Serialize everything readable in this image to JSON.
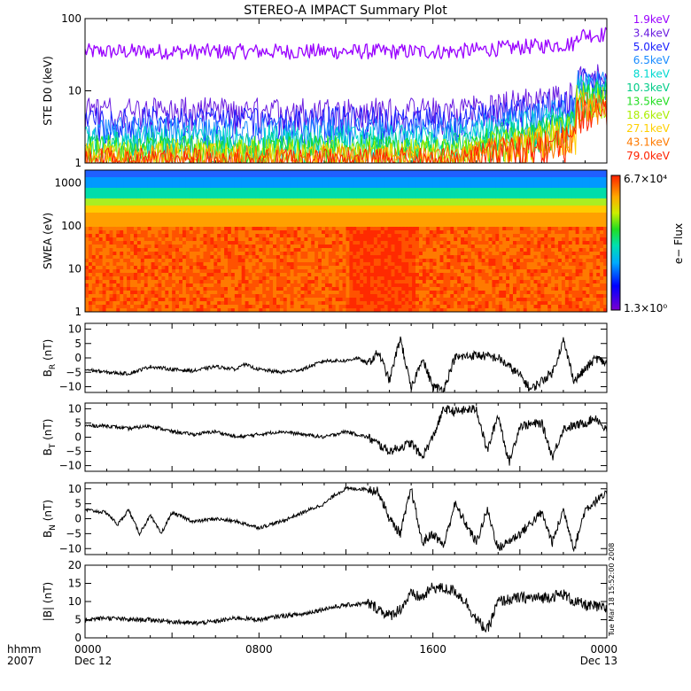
{
  "title": "STEREO-A IMPACT Summary Plot",
  "timestamp": "Tue Mar 18 15:52:00 2008",
  "x_axis": {
    "row1_label": "hhmm",
    "row2_label": "2007",
    "ticks": [
      {
        "t": 0,
        "top": "0000",
        "bottom": "Dec 12"
      },
      {
        "t": 8,
        "top": "0800",
        "bottom": ""
      },
      {
        "t": 16,
        "top": "1600",
        "bottom": ""
      },
      {
        "t": 24,
        "top": "0000",
        "bottom": "Dec 13"
      }
    ],
    "range_hours": [
      0,
      24
    ]
  },
  "colors": {
    "1.9keV": "#9900ff",
    "3.4keV": "#6a1be0",
    "5.0keV": "#1a20ff",
    "6.5keV": "#1a8cff",
    "8.1keV": "#00d8d0",
    "10.3keV": "#00cc88",
    "13.5keV": "#22dd22",
    "18.6keV": "#aaee00",
    "27.1keV": "#ffd000",
    "43.1keV": "#ff7a00",
    "79.0keV": "#ff2200"
  },
  "chart_data": [
    {
      "id": "ste",
      "type": "line",
      "ylabel": "STE D0 (keV)",
      "yscale": "log",
      "ylim": [
        1,
        100
      ],
      "yticks": [
        "1",
        "10",
        "100"
      ],
      "ytick_values": [
        1,
        10,
        100
      ],
      "legend_placement": "right",
      "series": [
        {
          "name": "1.9keV",
          "level_before": 35,
          "level_after": 60,
          "spread": 0.25
        },
        {
          "name": "3.4keV",
          "level_before": 6,
          "level_after": 18,
          "spread": 0.3
        },
        {
          "name": "5.0keV",
          "level_before": 4.5,
          "level_after": 16,
          "spread": 0.3
        },
        {
          "name": "6.5keV",
          "level_before": 3.2,
          "level_after": 14,
          "spread": 0.3
        },
        {
          "name": "8.1keV",
          "level_before": 2.5,
          "level_after": 12,
          "spread": 0.3
        },
        {
          "name": "10.3keV",
          "level_before": 2,
          "level_after": 11,
          "spread": 0.3
        },
        {
          "name": "13.5keV",
          "level_before": 1.8,
          "level_after": 10,
          "spread": 0.3
        },
        {
          "name": "18.6keV",
          "level_before": 1.6,
          "level_after": 9,
          "spread": 0.3
        },
        {
          "name": "27.1keV",
          "level_before": 1.4,
          "level_after": 8,
          "spread": 0.3
        },
        {
          "name": "43.1keV",
          "level_before": 1.3,
          "level_after": 7,
          "spread": 0.3
        },
        {
          "name": "79.0keV",
          "level_before": 1.2,
          "level_after": 6,
          "spread": 0.3
        }
      ]
    },
    {
      "id": "swea",
      "type": "heatmap",
      "ylabel": "SWEA (eV)",
      "yscale": "log",
      "ylim": [
        1,
        2000
      ],
      "yticks": [
        "1",
        "10",
        "100",
        "1000"
      ],
      "ytick_values": [
        1,
        10,
        100,
        1000
      ],
      "colorbar": {
        "label": "e− Flux",
        "max_label": "6.7×10⁴",
        "min_label": "1.3×10⁰"
      }
    },
    {
      "id": "br",
      "type": "line",
      "ylabel": "B_R (nT)",
      "ylabel_main": "B",
      "ylabel_sub": "R",
      "ylabel_unit": " (nT)",
      "ylim": [
        -12,
        12
      ],
      "yticks": [
        "−10",
        "−5",
        "0",
        "5",
        "10"
      ],
      "ytick_values": [
        -10,
        -5,
        0,
        5,
        10
      ],
      "keypoints": [
        [
          0,
          -4
        ],
        [
          1,
          -5
        ],
        [
          2,
          -5.5
        ],
        [
          3,
          -3
        ],
        [
          4,
          -4
        ],
        [
          5,
          -4.5
        ],
        [
          6,
          -3
        ],
        [
          7,
          -4
        ],
        [
          7.2,
          -2
        ],
        [
          8,
          -4
        ],
        [
          9,
          -5
        ],
        [
          10,
          -4
        ],
        [
          11,
          -1
        ],
        [
          12,
          -1
        ],
        [
          12.5,
          0
        ],
        [
          13,
          -2
        ],
        [
          13.5,
          2
        ],
        [
          14,
          -8
        ],
        [
          14.5,
          7
        ],
        [
          15,
          -11
        ],
        [
          15.5,
          0
        ],
        [
          16,
          -10
        ],
        [
          16.5,
          -11
        ],
        [
          17,
          0
        ],
        [
          18,
          1
        ],
        [
          19,
          0
        ],
        [
          20,
          -6
        ],
        [
          20.5,
          -11
        ],
        [
          21,
          -8
        ],
        [
          21.5,
          -5
        ],
        [
          22,
          6
        ],
        [
          22.5,
          -8
        ],
        [
          23,
          -4
        ],
        [
          23.5,
          0
        ],
        [
          24,
          -2
        ]
      ]
    },
    {
      "id": "bt",
      "type": "line",
      "ylabel": "B_T (nT)",
      "ylabel_main": "B",
      "ylabel_sub": "T",
      "ylabel_unit": " (nT)",
      "ylim": [
        -12,
        12
      ],
      "yticks": [
        "−10",
        "−5",
        "0",
        "5",
        "10"
      ],
      "ytick_values": [
        -10,
        -5,
        0,
        5,
        10
      ],
      "keypoints": [
        [
          0,
          4
        ],
        [
          1,
          4
        ],
        [
          2,
          3
        ],
        [
          3,
          4
        ],
        [
          4,
          2
        ],
        [
          5,
          1
        ],
        [
          6,
          2
        ],
        [
          7,
          0
        ],
        [
          8,
          1
        ],
        [
          9,
          2
        ],
        [
          10,
          1
        ],
        [
          11,
          0
        ],
        [
          12,
          2
        ],
        [
          13,
          0
        ],
        [
          14,
          -5
        ],
        [
          15,
          -2
        ],
        [
          15.5,
          -7
        ],
        [
          16,
          0
        ],
        [
          16.5,
          10
        ],
        [
          17,
          9
        ],
        [
          18,
          10
        ],
        [
          18.5,
          -5
        ],
        [
          19,
          8
        ],
        [
          19.5,
          -9
        ],
        [
          20,
          4
        ],
        [
          21,
          5
        ],
        [
          21.5,
          -7
        ],
        [
          22,
          3
        ],
        [
          23,
          5
        ],
        [
          23.5,
          7
        ],
        [
          24,
          2
        ]
      ]
    },
    {
      "id": "bn",
      "type": "line",
      "ylabel": "B_N (nT)",
      "ylabel_main": "B",
      "ylabel_sub": "N",
      "ylabel_unit": " (nT)",
      "ylim": [
        -12,
        12
      ],
      "yticks": [
        "−10",
        "−5",
        "0",
        "5",
        "10"
      ],
      "ytick_values": [
        -10,
        -5,
        0,
        5,
        10
      ],
      "keypoints": [
        [
          0,
          3
        ],
        [
          1,
          2
        ],
        [
          1.5,
          -2
        ],
        [
          2,
          3
        ],
        [
          2.5,
          -5
        ],
        [
          3,
          1
        ],
        [
          3.5,
          -5
        ],
        [
          4,
          2
        ],
        [
          5,
          -1
        ],
        [
          6,
          0
        ],
        [
          7,
          -1
        ],
        [
          8,
          -3
        ],
        [
          9,
          -1
        ],
        [
          10,
          2
        ],
        [
          11,
          5
        ],
        [
          11.5,
          8
        ],
        [
          12,
          10
        ],
        [
          13,
          10
        ],
        [
          13.5,
          9
        ],
        [
          14,
          0
        ],
        [
          14.5,
          -5
        ],
        [
          15,
          10
        ],
        [
          15.5,
          -8
        ],
        [
          16,
          -5
        ],
        [
          16.5,
          -9
        ],
        [
          17,
          5
        ],
        [
          18,
          -8
        ],
        [
          18.5,
          3
        ],
        [
          19,
          -10
        ],
        [
          20,
          -5
        ],
        [
          21,
          2
        ],
        [
          21.5,
          -8
        ],
        [
          22,
          3
        ],
        [
          22.5,
          -10
        ],
        [
          23,
          3
        ],
        [
          23.5,
          6
        ],
        [
          24,
          8
        ]
      ]
    },
    {
      "id": "bmag",
      "type": "line",
      "ylabel": "|B| (nT)",
      "ylim": [
        0,
        20
      ],
      "yticks": [
        "0",
        "5",
        "10",
        "15",
        "20"
      ],
      "ytick_values": [
        0,
        5,
        10,
        15,
        20
      ],
      "keypoints": [
        [
          0,
          5
        ],
        [
          1,
          5.5
        ],
        [
          2,
          5
        ],
        [
          3,
          5
        ],
        [
          4,
          4.5
        ],
        [
          5,
          4
        ],
        [
          6,
          4.5
        ],
        [
          7,
          5.5
        ],
        [
          8,
          5
        ],
        [
          9,
          6
        ],
        [
          10,
          6.5
        ],
        [
          11,
          8
        ],
        [
          12,
          9
        ],
        [
          13,
          9.5
        ],
        [
          13.5,
          8
        ],
        [
          14,
          6
        ],
        [
          14.5,
          8
        ],
        [
          15,
          12
        ],
        [
          15.5,
          11
        ],
        [
          16,
          14
        ],
        [
          17,
          13
        ],
        [
          17.5,
          10
        ],
        [
          18,
          5
        ],
        [
          18.5,
          2
        ],
        [
          19,
          10
        ],
        [
          20,
          11
        ],
        [
          21,
          11
        ],
        [
          22,
          12
        ],
        [
          22.5,
          10
        ],
        [
          23,
          9
        ],
        [
          24,
          8
        ]
      ]
    }
  ]
}
